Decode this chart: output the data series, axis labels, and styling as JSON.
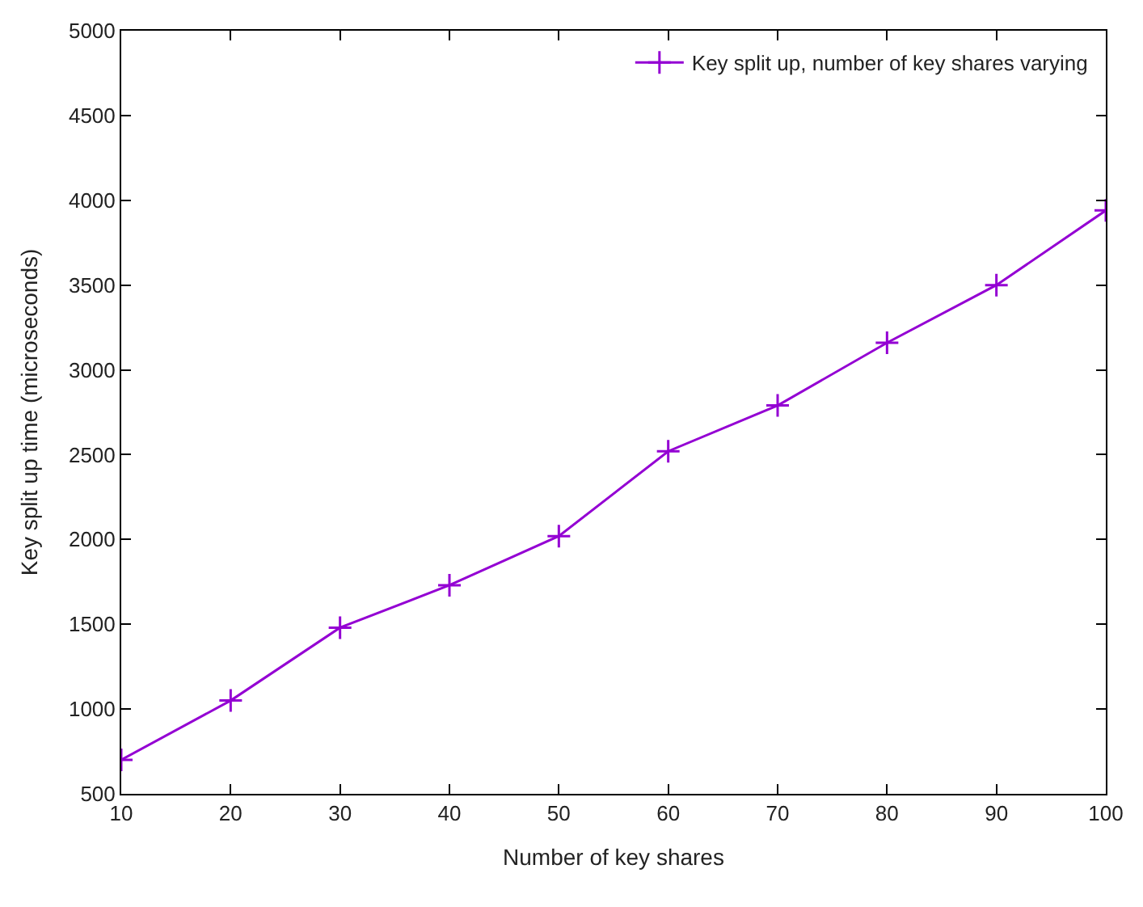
{
  "chart_data": {
    "type": "line",
    "xlabel": "Number of key shares",
    "ylabel": "Key split up time (microseconds)",
    "x": [
      10,
      20,
      30,
      40,
      50,
      60,
      70,
      80,
      90,
      100
    ],
    "series": [
      {
        "name": "Key split up, number of key shares varying",
        "color": "#9400d3",
        "values": [
          700,
          1050,
          1480,
          1730,
          2020,
          2520,
          2790,
          3160,
          3500,
          3940
        ]
      }
    ],
    "xlim": [
      10,
      100
    ],
    "xticks": [
      10,
      20,
      30,
      40,
      50,
      60,
      70,
      80,
      90,
      100
    ],
    "ylim": [
      500,
      5000
    ],
    "yticks": [
      500,
      1000,
      1500,
      2000,
      2500,
      3000,
      3500,
      4000,
      4500,
      5000
    ],
    "legend": "top right",
    "marker": "cross",
    "line_style": "solid"
  }
}
